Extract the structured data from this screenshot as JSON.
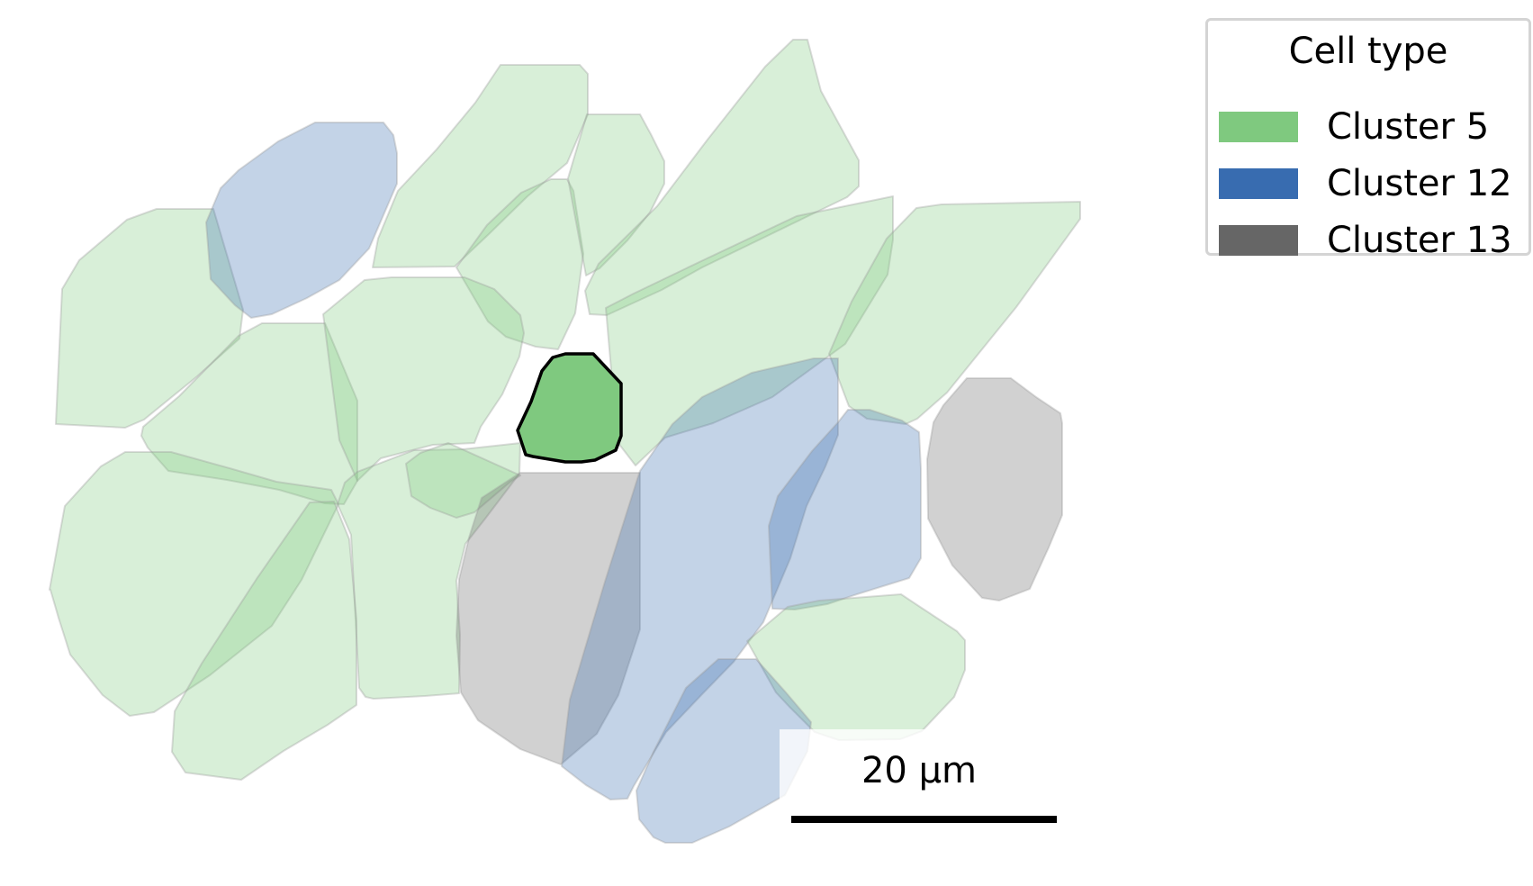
{
  "legend": {
    "title": "Cell type",
    "items": [
      {
        "label": "Cluster 5",
        "color": "#7fc97f"
      },
      {
        "label": "Cluster 12",
        "color": "#386cb0"
      },
      {
        "label": "Cluster 13",
        "color": "#666666"
      }
    ]
  },
  "scale_bar": {
    "label": "20 µm"
  },
  "cells": [
    {
      "cluster": "Cluster 5",
      "highlighted": false
    },
    {
      "cluster": "Cluster 12",
      "highlighted": false
    },
    {
      "cluster": "Cluster 5",
      "highlighted": false
    },
    {
      "cluster": "Cluster 5",
      "highlighted": false
    },
    {
      "cluster": "Cluster 5",
      "highlighted": false
    },
    {
      "cluster": "Cluster 5",
      "highlighted": false
    },
    {
      "cluster": "Cluster 5",
      "highlighted": false
    },
    {
      "cluster": "Cluster 5",
      "highlighted": false
    },
    {
      "cluster": "Cluster 5",
      "highlighted": false
    },
    {
      "cluster": "Cluster 5",
      "highlighted": false
    },
    {
      "cluster": "Cluster 5",
      "highlighted": false
    },
    {
      "cluster": "Cluster 5",
      "highlighted": false
    },
    {
      "cluster": "Cluster 5",
      "highlighted": false
    },
    {
      "cluster": "Cluster 5",
      "highlighted": false
    },
    {
      "cluster": "Cluster 13",
      "highlighted": false
    },
    {
      "cluster": "Cluster 12",
      "highlighted": false
    },
    {
      "cluster": "Cluster 12",
      "highlighted": false
    },
    {
      "cluster": "Cluster 13",
      "highlighted": false
    },
    {
      "cluster": "Cluster 5",
      "highlighted": false
    },
    {
      "cluster": "Cluster 12",
      "highlighted": false
    },
    {
      "cluster": "Cluster 5",
      "highlighted": false
    },
    {
      "cluster": "Cluster 5",
      "highlighted": true
    }
  ]
}
